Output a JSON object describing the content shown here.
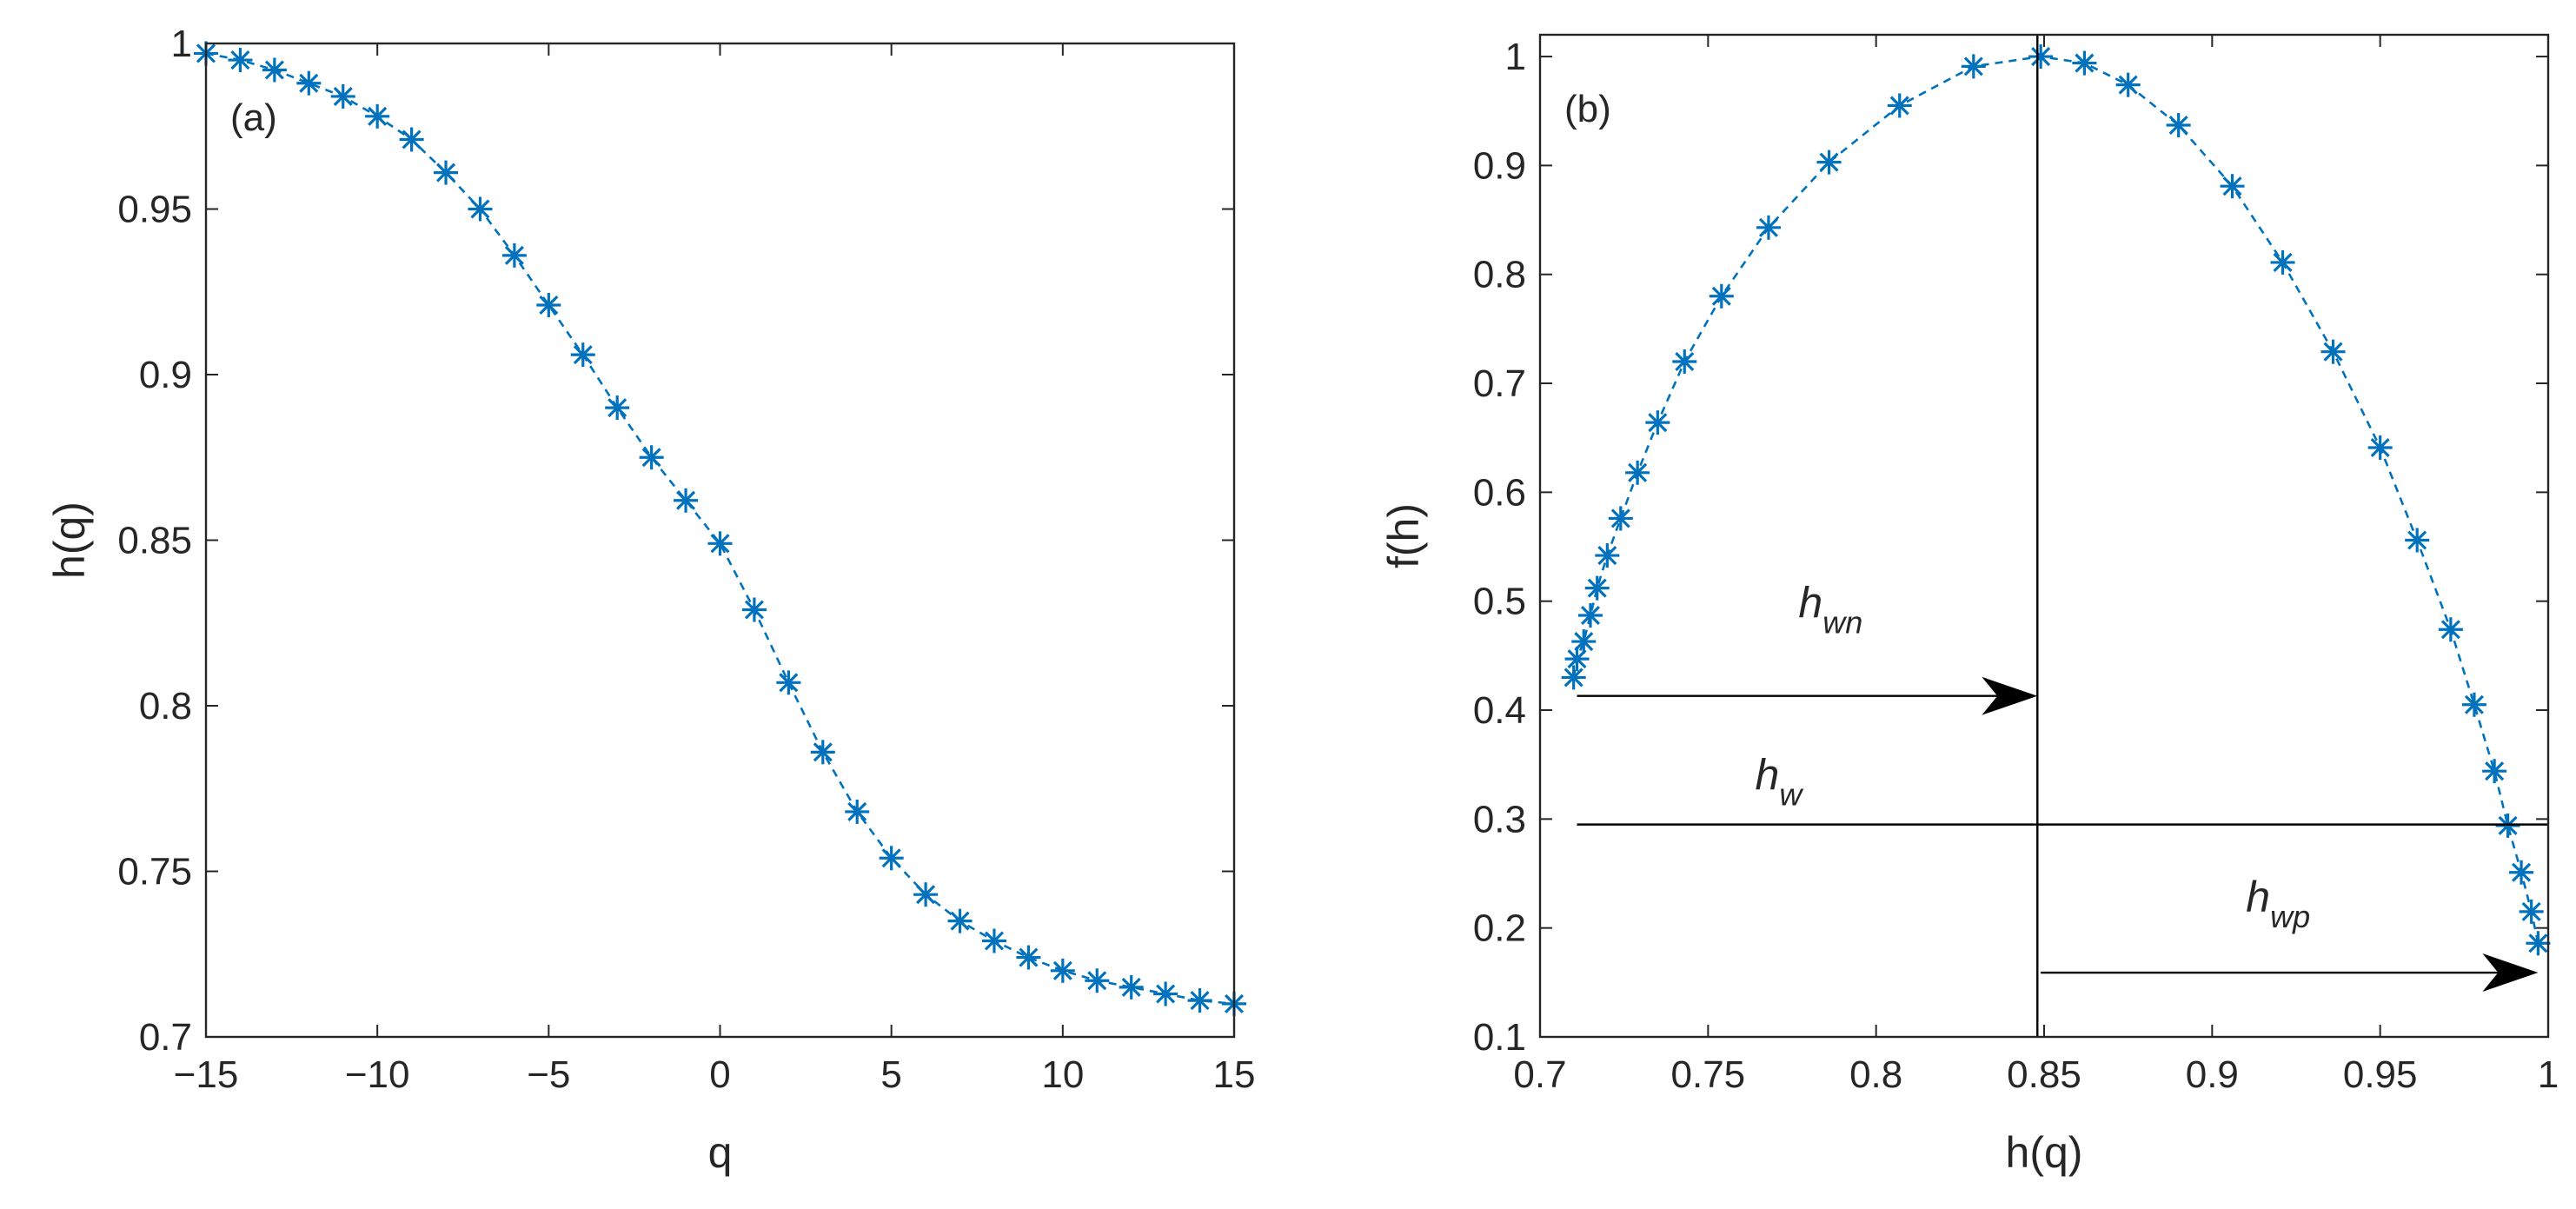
{
  "colors": {
    "series": "#0072BD",
    "axes": "#262626",
    "annotation": "#000000",
    "background": "#ffffff"
  },
  "chart_data": [
    {
      "type": "scatter",
      "panel_label": "(a)",
      "title": "",
      "xlabel": "q",
      "ylabel": "h(q)",
      "xlim": [
        -15,
        15
      ],
      "ylim": [
        0.7,
        1.0
      ],
      "xticks": [
        -15,
        -10,
        -5,
        0,
        5,
        10,
        15
      ],
      "xtick_labels": [
        "−15",
        "−10",
        "−5",
        "0",
        "5",
        "10",
        "15"
      ],
      "yticks": [
        0.7,
        0.75,
        0.8,
        0.85,
        0.9,
        0.95,
        1.0
      ],
      "ytick_labels": [
        "0.7",
        "0.75",
        "0.8",
        "0.85",
        "0.9",
        "0.95",
        "1"
      ],
      "grid": false,
      "marker": "asterisk",
      "line_style": "dashed",
      "series": [
        {
          "name": "h(q)",
          "x": [
            -15,
            -14,
            -13,
            -12,
            -11,
            -10,
            -9,
            -8,
            -7,
            -6,
            -5,
            -4,
            -3,
            -2,
            -1,
            0,
            1,
            2,
            3,
            4,
            5,
            6,
            7,
            8,
            9,
            10,
            11,
            12,
            13,
            14,
            15
          ],
          "y": [
            0.997,
            0.995,
            0.992,
            0.988,
            0.984,
            0.978,
            0.971,
            0.961,
            0.95,
            0.936,
            0.921,
            0.906,
            0.89,
            0.875,
            0.862,
            0.849,
            0.829,
            0.807,
            0.786,
            0.768,
            0.754,
            0.743,
            0.735,
            0.729,
            0.724,
            0.72,
            0.717,
            0.715,
            0.713,
            0.711,
            0.71
          ]
        }
      ]
    },
    {
      "type": "scatter",
      "panel_label": "(b)",
      "title": "",
      "xlabel": "h(q)",
      "ylabel": "f(h)",
      "xlim": [
        0.7,
        1.0
      ],
      "ylim": [
        0.1,
        1.02
      ],
      "xticks": [
        0.7,
        0.75,
        0.8,
        0.85,
        0.9,
        0.95,
        1.0
      ],
      "xtick_labels": [
        "0.7",
        "0.75",
        "0.8",
        "0.85",
        "0.9",
        "0.95",
        "1"
      ],
      "yticks": [
        0.1,
        0.2,
        0.3,
        0.4,
        0.5,
        0.6,
        0.7,
        0.8,
        0.9,
        1.0
      ],
      "ytick_labels": [
        "0.1",
        "0.2",
        "0.3",
        "0.4",
        "0.5",
        "0.6",
        "0.7",
        "0.8",
        "0.9",
        "1"
      ],
      "grid": false,
      "marker": "asterisk",
      "line_style": "dashed",
      "series": [
        {
          "name": "f(h)",
          "x": [
            0.71,
            0.711,
            0.713,
            0.715,
            0.717,
            0.72,
            0.724,
            0.729,
            0.735,
            0.743,
            0.754,
            0.768,
            0.786,
            0.807,
            0.829,
            0.849,
            0.862,
            0.875,
            0.89,
            0.906,
            0.921,
            0.936,
            0.95,
            0.961,
            0.971,
            0.978,
            0.984,
            0.988,
            0.992,
            0.995,
            0.997
          ],
          "y": [
            0.43,
            0.447,
            0.463,
            0.487,
            0.512,
            0.542,
            0.576,
            0.618,
            0.664,
            0.72,
            0.78,
            0.843,
            0.903,
            0.955,
            0.991,
            1.0,
            0.994,
            0.974,
            0.937,
            0.881,
            0.811,
            0.729,
            0.641,
            0.556,
            0.474,
            0.405,
            0.344,
            0.294,
            0.251,
            0.215,
            0.186
          ]
        }
      ],
      "annotations": {
        "vertical_line_x": 0.848,
        "h_wn": {
          "label": "h",
          "subscript": "wn",
          "arrow_from": [
            0.711,
            0.413
          ],
          "arrow_to": [
            0.848,
            0.413
          ]
        },
        "h_w": {
          "label": "h",
          "subscript": "w",
          "line_from": [
            0.711,
            0.295
          ],
          "line_to": [
            1.0,
            0.295
          ]
        },
        "h_wp": {
          "label": "h",
          "subscript": "wp",
          "arrow_from": [
            0.849,
            0.159
          ],
          "arrow_to": [
            0.997,
            0.159
          ]
        }
      }
    }
  ]
}
